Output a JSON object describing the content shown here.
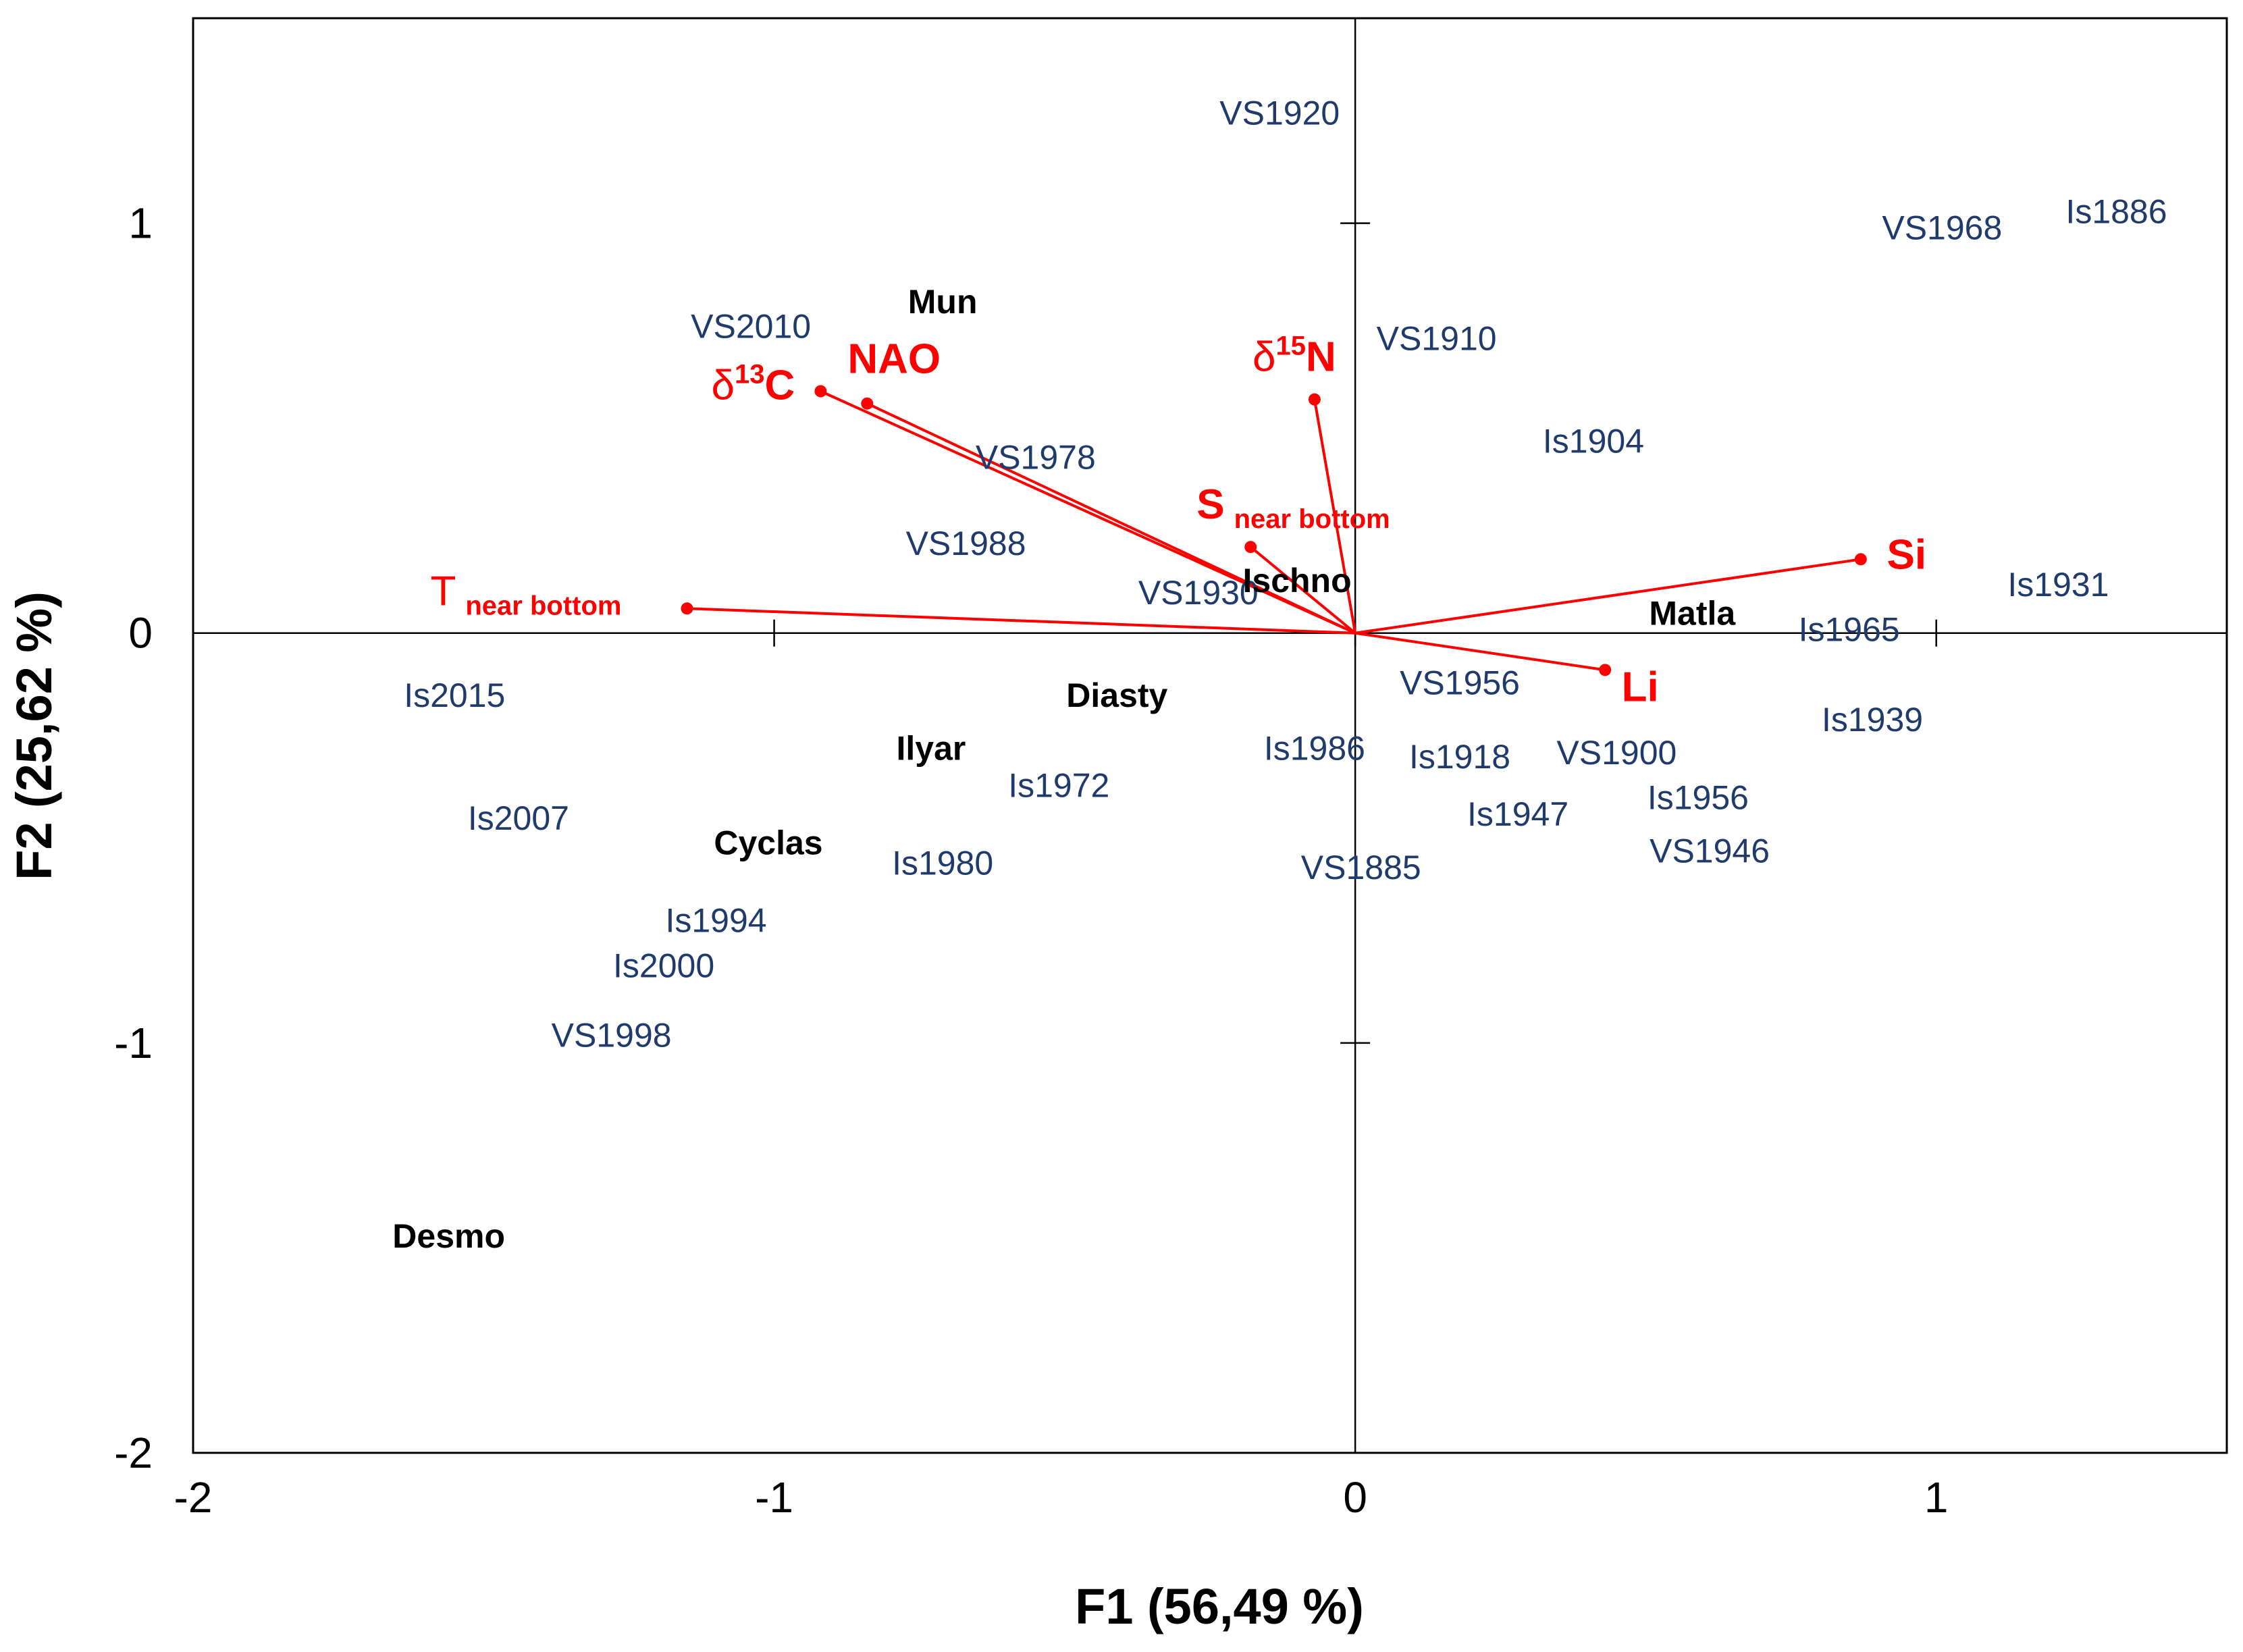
{
  "chart_data": {
    "type": "scatter",
    "subtype": "pca-biplot",
    "xlabel": "F1 (56,49 %)",
    "ylabel": "F2 (25,62 %)",
    "xlim": [
      -2,
      1.5
    ],
    "ylim": [
      -2,
      1.5
    ],
    "x_ticks": [
      -2,
      -1,
      0,
      1
    ],
    "y_ticks": [
      -2,
      -1,
      0,
      1
    ],
    "colors": {
      "observation": "#1f3a6b",
      "taxon": "#000000",
      "variable": "#ff0000",
      "axes": "#000000"
    },
    "observations": [
      {
        "label": "VS1920",
        "x": -0.13,
        "y": 1.27
      },
      {
        "label": "Is1886",
        "x": 1.31,
        "y": 1.03
      },
      {
        "label": "VS1968",
        "x": 1.01,
        "y": 0.99
      },
      {
        "label": "VS1910",
        "x": 0.14,
        "y": 0.72
      },
      {
        "label": "VS2010",
        "x": -1.04,
        "y": 0.75
      },
      {
        "label": "Is1904",
        "x": 0.41,
        "y": 0.47
      },
      {
        "label": "VS1978",
        "x": -0.55,
        "y": 0.43
      },
      {
        "label": "VS1988",
        "x": -0.67,
        "y": 0.22
      },
      {
        "label": "VS1930",
        "x": -0.27,
        "y": 0.1
      },
      {
        "label": "Is1931",
        "x": 1.21,
        "y": 0.12
      },
      {
        "label": "Is1965",
        "x": 0.85,
        "y": 0.01
      },
      {
        "label": "Is2015",
        "x": -1.55,
        "y": -0.15
      },
      {
        "label": "VS1956",
        "x": 0.18,
        "y": -0.12
      },
      {
        "label": "Is1939",
        "x": 0.89,
        "y": -0.21
      },
      {
        "label": "Is1986",
        "x": -0.07,
        "y": -0.28
      },
      {
        "label": "Is1918",
        "x": 0.18,
        "y": -0.3
      },
      {
        "label": "VS1900",
        "x": 0.45,
        "y": -0.29
      },
      {
        "label": "Is1972",
        "x": -0.51,
        "y": -0.37
      },
      {
        "label": "Is1956",
        "x": 0.59,
        "y": -0.4
      },
      {
        "label": "Is2007",
        "x": -1.44,
        "y": -0.45
      },
      {
        "label": "Is1947",
        "x": 0.28,
        "y": -0.44
      },
      {
        "label": "VS1946",
        "x": 0.61,
        "y": -0.53
      },
      {
        "label": "Is1980",
        "x": -0.71,
        "y": -0.56
      },
      {
        "label": "VS1885",
        "x": 0.01,
        "y": -0.57
      },
      {
        "label": "Is1994",
        "x": -1.1,
        "y": -0.7
      },
      {
        "label": "Is2000",
        "x": -1.19,
        "y": -0.81
      },
      {
        "label": "VS1998",
        "x": -1.28,
        "y": -0.98
      }
    ],
    "taxa": [
      {
        "label": "Mun",
        "x": -0.71,
        "y": 0.81
      },
      {
        "label": "Ischno",
        "x": -0.1,
        "y": 0.13
      },
      {
        "label": "Matla",
        "x": 0.58,
        "y": 0.05
      },
      {
        "label": "Diasty",
        "x": -0.41,
        "y": -0.15
      },
      {
        "label": "Ilyar",
        "x": -0.73,
        "y": -0.28
      },
      {
        "label": "Cyclas",
        "x": -1.01,
        "y": -0.51
      },
      {
        "label": "Desmo",
        "x": -1.56,
        "y": -1.47
      }
    ],
    "variables": [
      {
        "label": "δ13C",
        "base": "δ",
        "sup": "13",
        "main": "C",
        "sub": "",
        "x": -0.92,
        "y": 0.59
      },
      {
        "label": "NAO",
        "base": "NAO",
        "sup": "",
        "main": "",
        "sub": "",
        "x": -0.84,
        "y": 0.56
      },
      {
        "label": "δ15N",
        "base": "δ",
        "sup": "15",
        "main": "N",
        "sub": "",
        "x": -0.07,
        "y": 0.57
      },
      {
        "label": "S near bottom",
        "base": "S",
        "sup": "",
        "main": "",
        "sub": "near bottom",
        "x": -0.18,
        "y": 0.21
      },
      {
        "label": "T near bottom",
        "base": "T",
        "sup": "",
        "main": "",
        "sub": "near bottom",
        "x": -1.15,
        "y": 0.06
      },
      {
        "label": "Si",
        "base": "Si",
        "sup": "",
        "main": "",
        "sub": "",
        "x": 0.87,
        "y": 0.18
      },
      {
        "label": "Li",
        "base": "Li",
        "sup": "",
        "main": "",
        "sub": "",
        "x": 0.43,
        "y": -0.09
      }
    ]
  }
}
